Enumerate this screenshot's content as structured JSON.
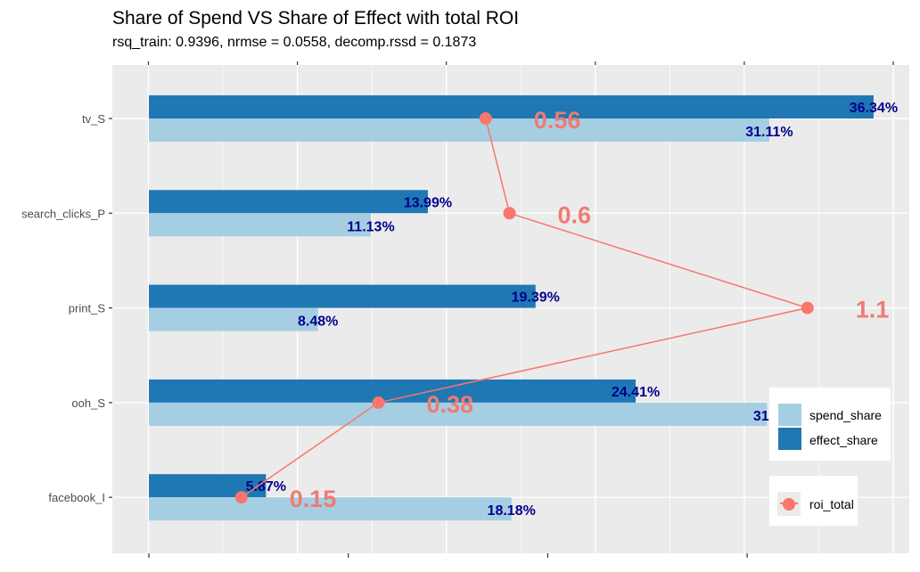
{
  "chart_data": {
    "type": "bar",
    "orientation": "horizontal",
    "title": "Share of Spend VS Share of Effect with total ROI",
    "subtitle": "rsq_train: 0.9396, nrmse = 0.0558, decomp.rssd = 0.1873",
    "xlabel": "",
    "ylabel": "",
    "categories": [
      "tv_S",
      "search_clicks_P",
      "print_S",
      "ooh_S",
      "facebook_I"
    ],
    "series": [
      {
        "name": "spend_share",
        "color": "#a6cee3",
        "values": [
          31.11,
          11.13,
          8.48,
          31.0,
          18.18
        ],
        "labels": [
          "31.11%",
          "11.13%",
          "8.48%",
          "31.0",
          "18.18%"
        ]
      },
      {
        "name": "effect_share",
        "color": "#1f78b4",
        "values": [
          36.34,
          13.99,
          19.39,
          24.41,
          5.87
        ],
        "labels": [
          "36.34%",
          "13.99%",
          "19.39%",
          "24.41%",
          "5.87%"
        ]
      }
    ],
    "line_series": {
      "name": "roi_total",
      "color": "#f8766d",
      "values": [
        0.56,
        0.6,
        1.1,
        0.38,
        0.15
      ],
      "labels": [
        "0.56",
        "0.6",
        "1.1",
        "0.38",
        "0.15"
      ]
    },
    "share_axis": {
      "unit": "percent",
      "range": [
        0,
        38.6
      ],
      "ticks": [
        0,
        10,
        20,
        30
      ],
      "tick_labels_shown": false
    },
    "roi_axis": {
      "range": [
        -0.06,
        1.27
      ],
      "ticks": [
        0,
        0.25,
        0.5,
        0.75,
        1.0,
        1.25
      ],
      "tick_labels_shown": false
    },
    "grid": true,
    "legend": {
      "placement": "bottom-right",
      "bar_entries": [
        "spend_share",
        "effect_share"
      ],
      "line_entries": [
        "roi_total"
      ]
    }
  }
}
